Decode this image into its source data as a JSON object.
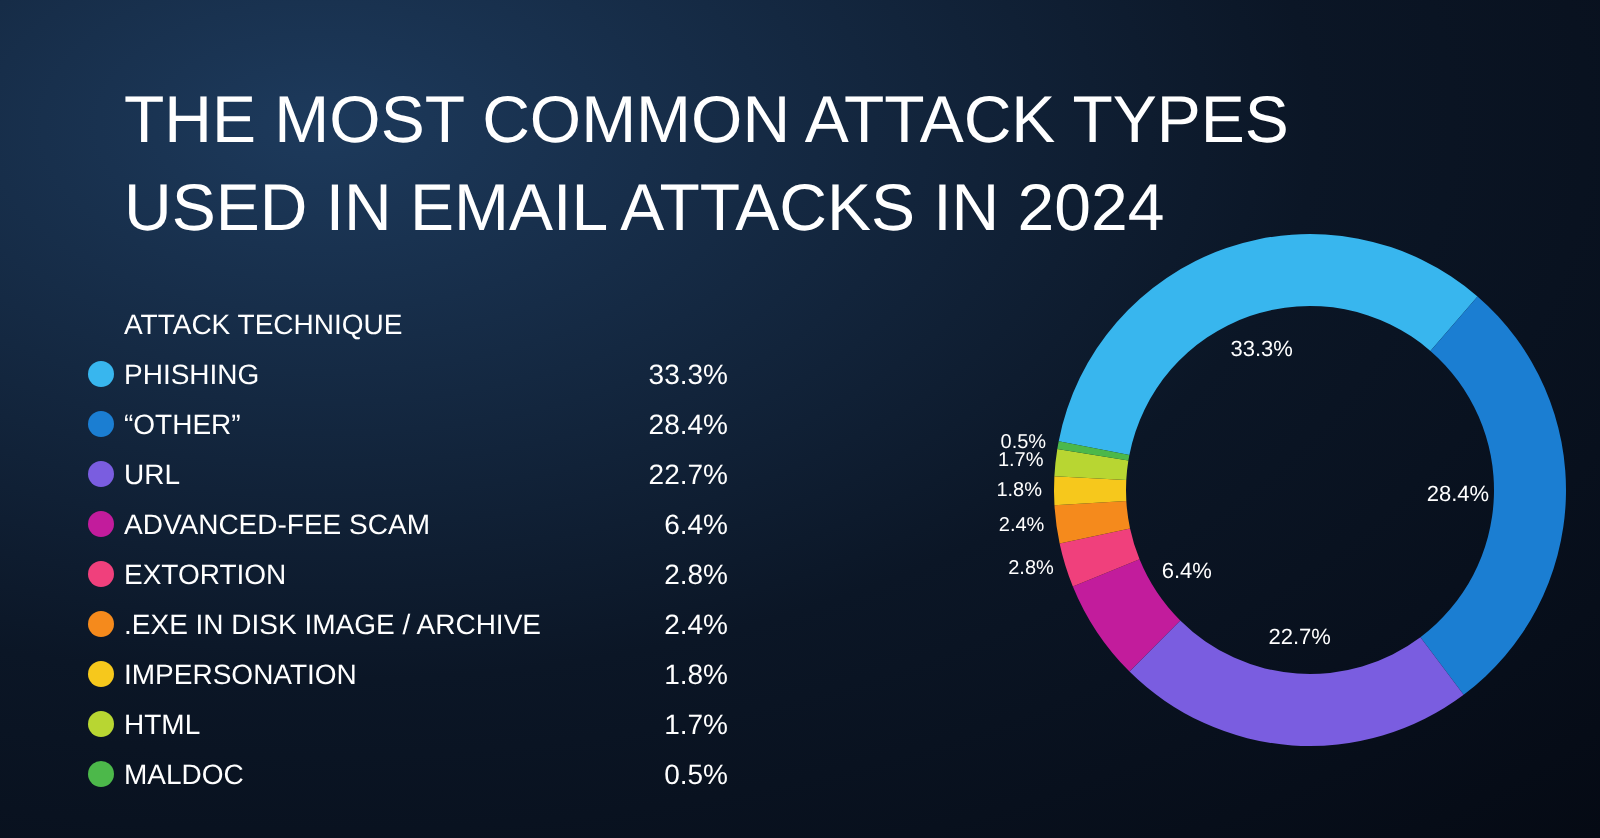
{
  "chart_data": {
    "type": "donut",
    "title": "THE MOST COMMON ATTACK TYPES USED IN EMAIL ATTACKS IN 2024",
    "legend_title": "ATTACK TECHNIQUE",
    "legend": "left",
    "categories": [
      "PHISHING",
      "“OTHER”",
      "URL",
      "ADVANCED-FEE SCAM",
      "EXTORTION",
      ".EXE IN DISK IMAGE / ARCHIVE",
      "IMPERSONATION",
      "HTML",
      "MALDOC"
    ],
    "values": [
      33.3,
      28.4,
      22.7,
      6.4,
      2.8,
      2.4,
      1.8,
      1.7,
      0.5
    ],
    "value_labels": [
      "33.3%",
      "28.4%",
      "22.7%",
      "6.4%",
      "2.8%",
      "2.4%",
      "1.8%",
      "1.7%",
      "0.5%"
    ],
    "colors": [
      "#38b6ee",
      "#1b7ed2",
      "#7a5de0",
      "#c21c9c",
      "#f0407c",
      "#f58a1c",
      "#f6c81c",
      "#b8d632",
      "#4cb84a"
    ]
  }
}
